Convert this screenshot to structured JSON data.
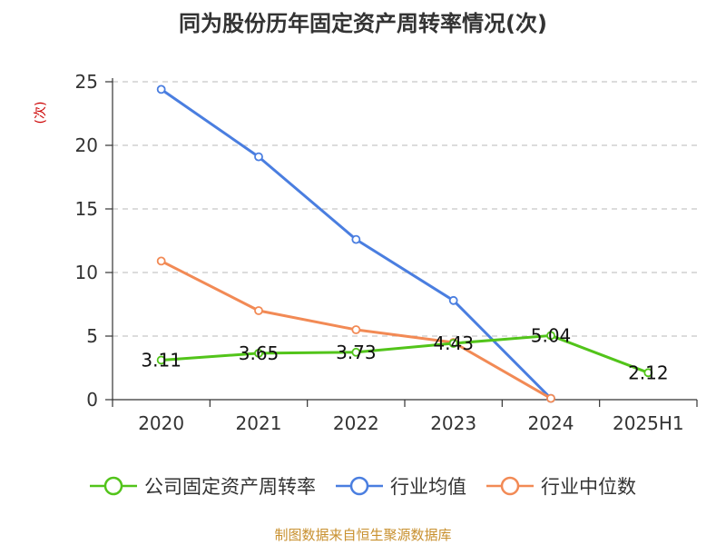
{
  "title": "同为股份历年固定资产周转率情况(次)",
  "source": "制图数据来自恒生聚源数据库",
  "chart_data": {
    "type": "line",
    "title": "同为股份历年固定资产周转率情况(次)",
    "ylabel": "(次)",
    "xlabel": "",
    "categories": [
      "2020",
      "2021",
      "2022",
      "2023",
      "2024",
      "2025H1"
    ],
    "ylim": [
      0,
      25
    ],
    "yticks": [
      0,
      5,
      10,
      15,
      20,
      25
    ],
    "grid": true,
    "legend_position": "bottom",
    "series": [
      {
        "name": "公司固定资产周转率",
        "color": "#52c41a",
        "values": [
          3.11,
          3.65,
          3.73,
          4.43,
          5.04,
          2.12
        ],
        "labels": [
          "3.11",
          "3.65",
          "3.73",
          "4.43",
          "5.04",
          "2.12"
        ]
      },
      {
        "name": "行业均值",
        "color": "#4a7ee0",
        "values": [
          24.4,
          19.1,
          12.6,
          7.8,
          0.1,
          null
        ]
      },
      {
        "name": "行业中位数",
        "color": "#f28a55",
        "values": [
          10.9,
          7.0,
          5.5,
          4.5,
          0.1,
          null
        ]
      }
    ]
  }
}
